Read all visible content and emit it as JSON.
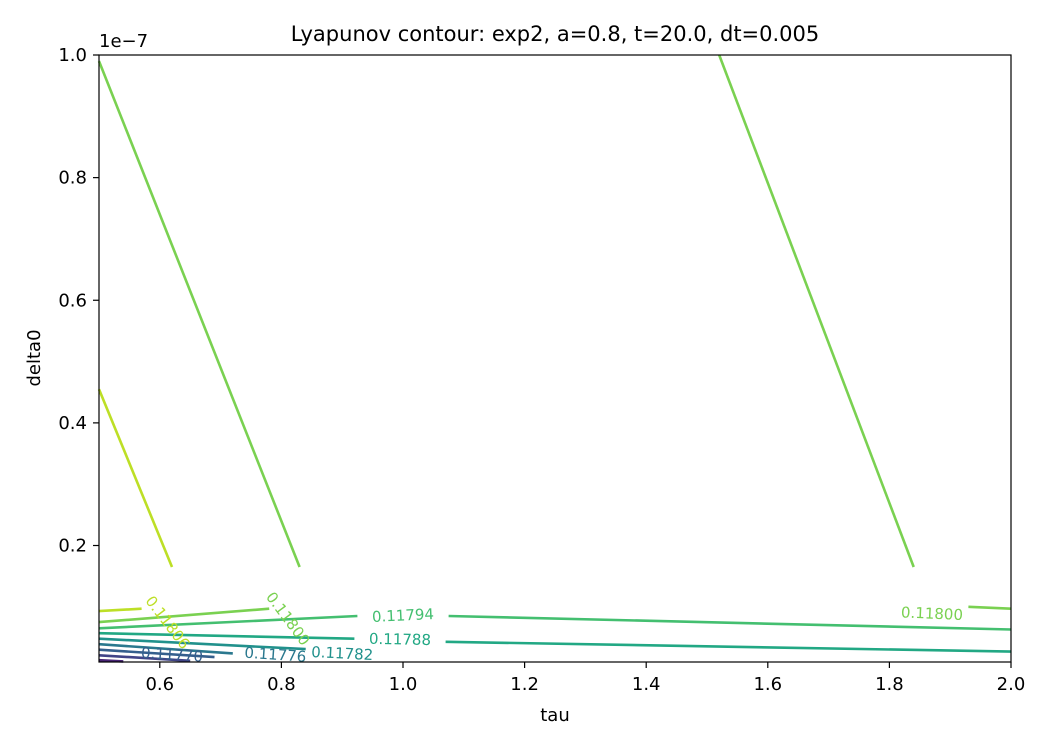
{
  "chart_data": {
    "type": "contour",
    "title": "Lyapunov contour: exp2, a=0.8, t=20.0, dt=0.005",
    "xlabel": "tau",
    "ylabel": "delta0",
    "y_offset_label": "1e−7",
    "xlim": [
      0.5,
      2.0
    ],
    "ylim": [
      0.01,
      1.0
    ],
    "x_ticks": [
      0.6,
      0.8,
      1.0,
      1.2,
      1.4,
      1.6,
      1.8,
      2.0
    ],
    "x_tick_labels": [
      "0.6",
      "0.8",
      "1.0",
      "1.2",
      "1.4",
      "1.6",
      "1.8",
      "2.0"
    ],
    "y_ticks": [
      0.2,
      0.4,
      0.6,
      0.8,
      1.0
    ],
    "y_tick_labels": [
      "0.2",
      "0.4",
      "0.6",
      "0.8",
      "1.0"
    ],
    "grid": false,
    "colormap": "viridis",
    "contours": [
      {
        "level": 0.11806,
        "label": "0.11806",
        "color": "#bddf26",
        "segments": [
          [
            [
              0.5,
              0.455
            ],
            [
              0.62,
              0.165
            ]
          ],
          [
            [
              0.5,
              0.093
            ],
            [
              0.57,
              0.097
            ]
          ]
        ],
        "label_pos": [
          0.612,
          0.074
        ]
      },
      {
        "level": 0.118,
        "label": "0.11800",
        "color": "#7ad151",
        "segments": [
          [
            [
              0.5,
              0.99
            ],
            [
              0.83,
              0.165
            ]
          ],
          [
            [
              1.52,
              1.0
            ],
            [
              1.84,
              0.165
            ]
          ],
          [
            [
              0.5,
              0.075
            ],
            [
              0.78,
              0.097
            ]
          ],
          [
            [
              1.93,
              0.1
            ],
            [
              2.0,
              0.097
            ]
          ]
        ],
        "label_pos": [
          [
            0.81,
            0.08
          ],
          [
            1.87,
            0.088
          ]
        ]
      },
      {
        "level": 0.11794,
        "label": "0.11794",
        "color": "#44bf70",
        "segments": [
          [
            [
              0.5,
              0.065
            ],
            [
              0.925,
              0.085
            ]
          ],
          [
            [
              1.075,
              0.085
            ],
            [
              2.0,
              0.063
            ]
          ]
        ],
        "label_pos": [
          1.0,
          0.085
        ]
      },
      {
        "level": 0.11788,
        "label": "0.11788",
        "color": "#22a884",
        "segments": [
          [
            [
              0.5,
              0.057
            ],
            [
              0.92,
              0.048
            ]
          ],
          [
            [
              1.07,
              0.043
            ],
            [
              2.0,
              0.027
            ]
          ]
        ],
        "label_pos": [
          0.995,
          0.046
        ]
      },
      {
        "level": 0.11782,
        "label": "0.11782",
        "color": "#21918c",
        "segments": [
          [
            [
              0.5,
              0.048
            ],
            [
              0.84,
              0.031
            ]
          ]
        ],
        "label_pos": [
          0.9,
          0.023
        ]
      },
      {
        "level": 0.11776,
        "label": "0.11776",
        "color": "#2a788e",
        "segments": [
          [
            [
              0.5,
              0.039
            ],
            [
              0.72,
              0.024
            ]
          ]
        ],
        "label_pos": [
          0.79,
          0.021
        ]
      },
      {
        "level": 0.1177,
        "label": "0.11770",
        "color": "#355f8d",
        "segments": [
          [
            [
              0.5,
              0.03
            ],
            [
              0.69,
              0.018
            ]
          ]
        ],
        "label_pos": [
          0.62,
          0.021
        ]
      },
      {
        "level": 0.11764,
        "label": "",
        "color": "#414487",
        "segments": [
          [
            [
              0.5,
              0.021
            ],
            [
              0.65,
              0.012
            ]
          ]
        ],
        "label_pos": null
      },
      {
        "level": 0.11758,
        "label": "",
        "color": "#482475",
        "segments": [
          [
            [
              0.5,
              0.013
            ],
            [
              0.54,
              0.011
            ]
          ]
        ],
        "label_pos": null
      }
    ]
  }
}
